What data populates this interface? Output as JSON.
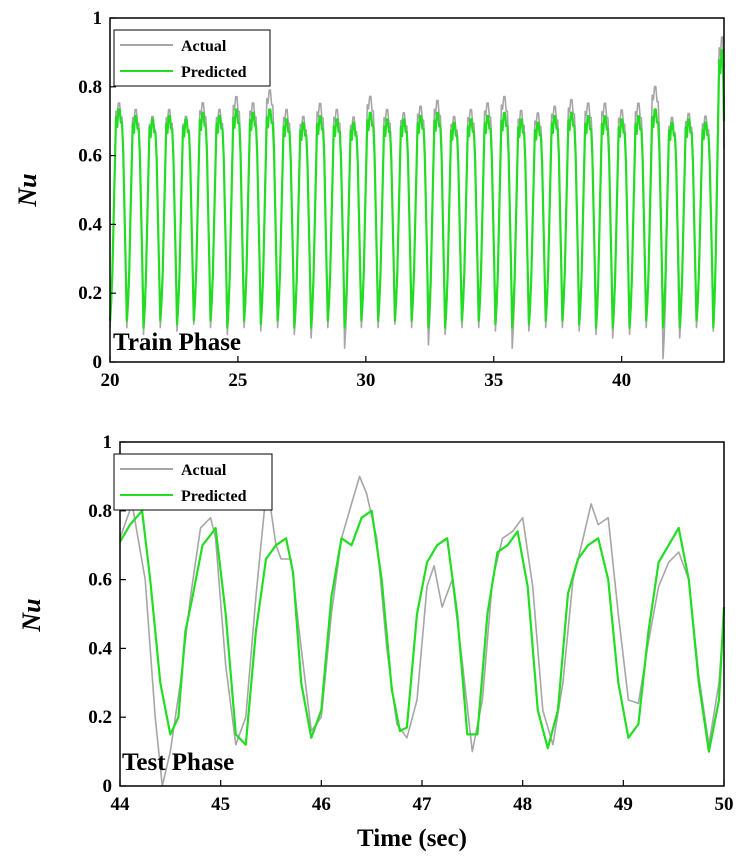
{
  "colors": {
    "actual": "#a6a6a6",
    "predicted": "#22dd22",
    "axis": "#000000"
  },
  "chart_data": [
    {
      "type": "line",
      "panel": "train",
      "annotation": "Train Phase",
      "xlabel": "",
      "ylabel": "Nu",
      "xlim": [
        20,
        44
      ],
      "ylim": [
        0,
        1
      ],
      "xticks": [
        20,
        25,
        30,
        35,
        40
      ],
      "yticks": [
        0,
        0.2,
        0.4,
        0.6,
        0.8,
        1
      ],
      "legend": {
        "position": "top-left",
        "entries": [
          "Actual",
          "Predicted"
        ]
      },
      "grid": false,
      "oscillation": {
        "period_sec": 0.655,
        "start_sec": 20,
        "end_sec": 44
      },
      "series": [
        {
          "name": "Actual",
          "peaks": [
            0.78,
            0.76,
            0.74,
            0.76,
            0.74,
            0.78,
            0.76,
            0.8,
            0.78,
            0.82,
            0.76,
            0.74,
            0.78,
            0.76,
            0.74,
            0.8,
            0.76,
            0.75,
            0.77,
            0.79,
            0.74,
            0.76,
            0.78,
            0.8,
            0.76,
            0.75,
            0.77,
            0.79,
            0.78,
            0.78,
            0.76,
            0.78,
            0.83,
            0.74,
            0.75,
            0.74,
            0.98
          ],
          "troughs": [
            0.1,
            0.1,
            0.08,
            0.1,
            0.09,
            0.11,
            0.1,
            0.08,
            0.1,
            0.09,
            0.1,
            0.08,
            0.07,
            0.1,
            0.04,
            0.1,
            0.1,
            0.11,
            0.1,
            0.05,
            0.08,
            0.1,
            0.1,
            0.09,
            0.04,
            0.09,
            0.1,
            0.1,
            0.09,
            0.08,
            0.07,
            0.08,
            0.1,
            0.01,
            0.07,
            0.1,
            0.09
          ]
        },
        {
          "name": "Predicted",
          "peaks": [
            0.76,
            0.74,
            0.73,
            0.74,
            0.73,
            0.75,
            0.74,
            0.76,
            0.75,
            0.76,
            0.73,
            0.72,
            0.74,
            0.73,
            0.72,
            0.75,
            0.73,
            0.73,
            0.74,
            0.75,
            0.72,
            0.73,
            0.74,
            0.75,
            0.73,
            0.72,
            0.74,
            0.75,
            0.74,
            0.74,
            0.73,
            0.74,
            0.76,
            0.72,
            0.73,
            0.72,
            0.94
          ],
          "troughs": [
            0.12,
            0.12,
            0.1,
            0.12,
            0.11,
            0.12,
            0.12,
            0.1,
            0.12,
            0.11,
            0.12,
            0.1,
            0.1,
            0.12,
            0.1,
            0.12,
            0.12,
            0.12,
            0.12,
            0.1,
            0.1,
            0.12,
            0.12,
            0.11,
            0.1,
            0.11,
            0.12,
            0.12,
            0.11,
            0.1,
            0.1,
            0.1,
            0.12,
            0.1,
            0.1,
            0.12,
            0.1
          ]
        }
      ]
    },
    {
      "type": "line",
      "panel": "test",
      "annotation": "Test Phase",
      "xlabel": "Time (sec)",
      "ylabel": "Nu",
      "xlim": [
        44,
        50
      ],
      "ylim": [
        0,
        1
      ],
      "xticks": [
        44,
        45,
        46,
        47,
        48,
        49,
        50
      ],
      "yticks": [
        0,
        0.2,
        0.4,
        0.6,
        0.8,
        1
      ],
      "legend": {
        "position": "top-left",
        "entries": [
          "Actual",
          "Predicted"
        ]
      },
      "grid": false,
      "series": [
        {
          "name": "Actual",
          "x": [
            44.0,
            44.12,
            44.25,
            44.35,
            44.42,
            44.5,
            44.6,
            44.7,
            44.8,
            44.9,
            44.95,
            45.05,
            45.15,
            45.25,
            45.35,
            45.45,
            45.5,
            45.55,
            45.6,
            45.7,
            45.8,
            45.9,
            46.0,
            46.1,
            46.2,
            46.3,
            46.38,
            46.45,
            46.55,
            46.65,
            46.75,
            46.85,
            46.95,
            47.05,
            47.12,
            47.2,
            47.3,
            47.4,
            47.5,
            47.6,
            47.7,
            47.8,
            47.9,
            48.0,
            48.1,
            48.2,
            48.3,
            48.4,
            48.5,
            48.6,
            48.68,
            48.75,
            48.85,
            48.95,
            49.05,
            49.15,
            49.25,
            49.35,
            49.45,
            49.55,
            49.65,
            49.75,
            49.85,
            49.95,
            50.0
          ],
          "y": [
            0.72,
            0.82,
            0.6,
            0.2,
            0.0,
            0.1,
            0.3,
            0.55,
            0.75,
            0.78,
            0.72,
            0.35,
            0.12,
            0.2,
            0.55,
            0.85,
            0.8,
            0.7,
            0.66,
            0.66,
            0.4,
            0.16,
            0.2,
            0.5,
            0.72,
            0.82,
            0.9,
            0.85,
            0.72,
            0.4,
            0.18,
            0.14,
            0.25,
            0.58,
            0.64,
            0.52,
            0.6,
            0.36,
            0.1,
            0.25,
            0.6,
            0.72,
            0.74,
            0.78,
            0.58,
            0.22,
            0.12,
            0.3,
            0.6,
            0.72,
            0.82,
            0.76,
            0.78,
            0.5,
            0.25,
            0.24,
            0.42,
            0.58,
            0.65,
            0.68,
            0.6,
            0.32,
            0.12,
            0.3,
            0.5
          ]
        },
        {
          "name": "Predicted",
          "x": [
            44.0,
            44.1,
            44.22,
            44.3,
            44.4,
            44.5,
            44.58,
            44.65,
            44.72,
            44.82,
            44.9,
            44.95,
            45.05,
            45.15,
            45.25,
            45.35,
            45.45,
            45.55,
            45.65,
            45.72,
            45.8,
            45.9,
            46.0,
            46.1,
            46.2,
            46.3,
            46.4,
            46.5,
            46.6,
            46.7,
            46.78,
            46.85,
            46.95,
            47.05,
            47.15,
            47.25,
            47.35,
            47.45,
            47.55,
            47.65,
            47.75,
            47.85,
            47.95,
            48.05,
            48.15,
            48.25,
            48.35,
            48.45,
            48.55,
            48.65,
            48.75,
            48.85,
            48.95,
            49.05,
            49.15,
            49.25,
            49.35,
            49.45,
            49.55,
            49.65,
            49.75,
            49.85,
            49.95,
            50.0
          ],
          "y": [
            0.71,
            0.76,
            0.8,
            0.6,
            0.3,
            0.15,
            0.2,
            0.45,
            0.55,
            0.7,
            0.73,
            0.75,
            0.5,
            0.15,
            0.12,
            0.45,
            0.66,
            0.7,
            0.72,
            0.62,
            0.3,
            0.14,
            0.22,
            0.55,
            0.72,
            0.7,
            0.78,
            0.8,
            0.6,
            0.28,
            0.16,
            0.17,
            0.5,
            0.65,
            0.7,
            0.72,
            0.5,
            0.15,
            0.15,
            0.5,
            0.68,
            0.7,
            0.74,
            0.58,
            0.22,
            0.11,
            0.22,
            0.56,
            0.66,
            0.7,
            0.72,
            0.6,
            0.3,
            0.14,
            0.18,
            0.45,
            0.65,
            0.7,
            0.75,
            0.6,
            0.3,
            0.1,
            0.25,
            0.52
          ]
        }
      ]
    }
  ]
}
